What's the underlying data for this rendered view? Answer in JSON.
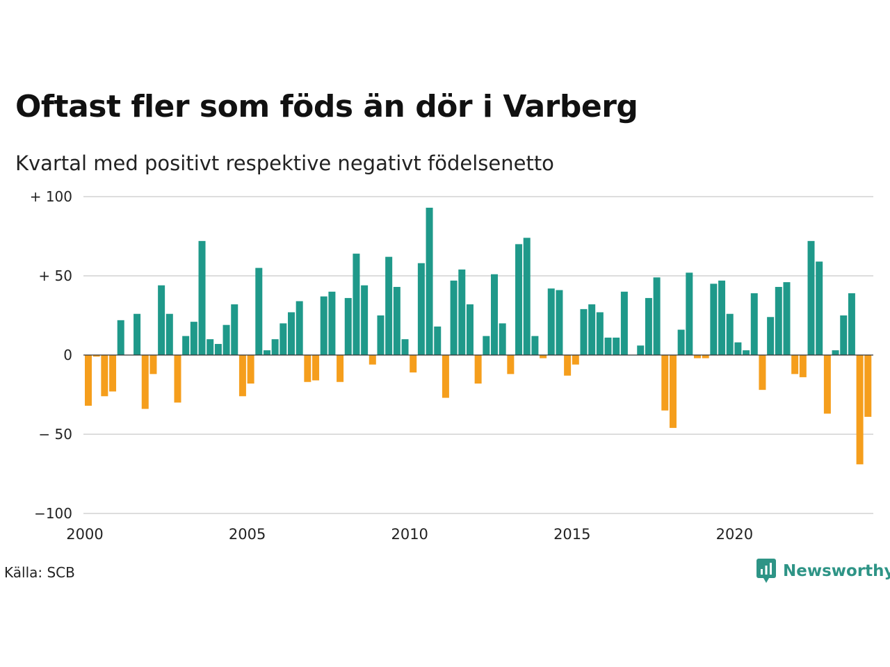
{
  "title": "Oftast fler som föds än dör i Varberg",
  "subtitle": "Kvartal med positivt respektive negativt födelsenetto",
  "source": "Källa: SCB",
  "brand": "Newsworthy",
  "colors": {
    "positive": "#1f998a",
    "negative": "#f59e1c",
    "grid": "#dddddd",
    "brand": "#2e9486"
  },
  "chart_data": {
    "type": "bar",
    "x_start": "2000 Q1",
    "x_ticks": [
      "2000",
      "2005",
      "2010",
      "2015",
      "2020"
    ],
    "y_ticks": [
      {
        "value": 100,
        "label": "+ 100"
      },
      {
        "value": 50,
        "label": "+  50"
      },
      {
        "value": 0,
        "label": "0"
      },
      {
        "value": -50,
        "label": "− 50"
      },
      {
        "value": -100,
        "label": "−100"
      }
    ],
    "ylim": [
      -100,
      100
    ],
    "grid": true,
    "values": [
      -32,
      -1,
      -26,
      -23,
      22,
      0,
      26,
      -34,
      -12,
      44,
      26,
      -30,
      12,
      21,
      72,
      10,
      7,
      19,
      32,
      -26,
      -18,
      55,
      3,
      10,
      20,
      27,
      34,
      -17,
      -16,
      37,
      40,
      -17,
      36,
      64,
      44,
      -6,
      25,
      62,
      43,
      10,
      -11,
      58,
      93,
      18,
      -27,
      47,
      54,
      32,
      -18,
      12,
      51,
      20,
      -12,
      70,
      74,
      12,
      -2,
      42,
      41,
      -13,
      -6,
      29,
      32,
      27,
      11,
      11,
      40,
      0,
      6,
      36,
      49,
      -35,
      -46,
      16,
      52,
      -2,
      -2,
      45,
      47,
      26,
      8,
      3,
      39,
      -22,
      24,
      43,
      46,
      -12,
      -14,
      72,
      59,
      -37,
      3,
      25,
      39,
      -69,
      -39
    ]
  }
}
